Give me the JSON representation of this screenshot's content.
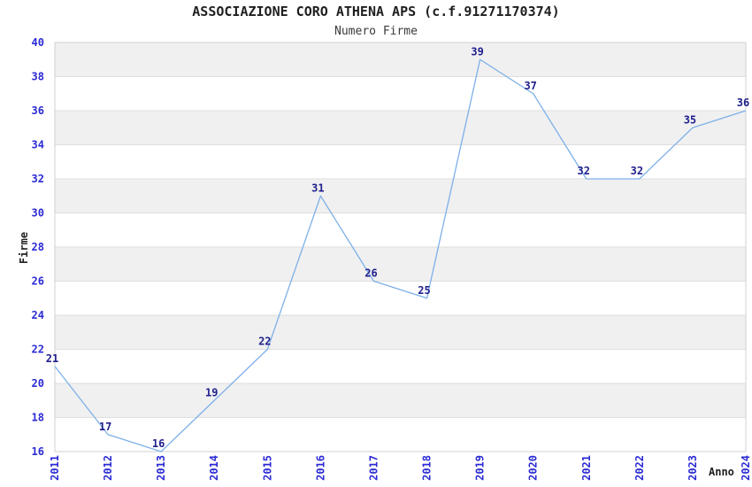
{
  "chart": {
    "title": "ASSOCIAZIONE CORO ATHENA APS (c.f.91271170374)",
    "subtitle": "Numero Firme",
    "ylabel": "Firme",
    "xlabel": "Anno"
  },
  "chart_data": {
    "type": "line",
    "categories": [
      "2011",
      "2012",
      "2013",
      "2014",
      "2015",
      "2016",
      "2017",
      "2018",
      "2019",
      "2020",
      "2021",
      "2022",
      "2023",
      "2024"
    ],
    "series": [
      {
        "name": "Numero Firme",
        "values": [
          21,
          17,
          16,
          19,
          22,
          31,
          26,
          25,
          39,
          37,
          32,
          32,
          35,
          36
        ]
      }
    ],
    "point_labels": [
      21,
      17,
      16,
      19,
      22,
      31,
      26,
      25,
      39,
      37,
      32,
      32,
      35,
      36
    ],
    "title": "ASSOCIAZIONE CORO ATHENA APS (c.f.91271170374)",
    "subtitle": "Numero Firme",
    "xlabel": "Anno",
    "ylabel": "Firme",
    "ylim": [
      16,
      40
    ],
    "ytick_step": 2,
    "yticks": [
      16,
      18,
      20,
      22,
      24,
      26,
      28,
      30,
      32,
      34,
      36,
      38,
      40
    ],
    "grid": "horizontal-alternating-bands",
    "legend": "none",
    "colors": {
      "line": "#7db0e8",
      "tick_label": "#2b2bd5",
      "point_label": "#20208c",
      "band_fill": "#f0f0f1",
      "gridline": "#dedede",
      "plot_border": "#d0d0d0",
      "background": "#ffffff"
    }
  }
}
